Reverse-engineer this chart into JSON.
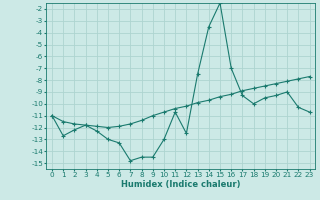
{
  "xlabel": "Humidex (Indice chaleur)",
  "x_values": [
    0,
    1,
    2,
    3,
    4,
    5,
    6,
    7,
    8,
    9,
    10,
    11,
    12,
    13,
    14,
    15,
    16,
    17,
    18,
    19,
    20,
    21,
    22,
    23
  ],
  "curve1_y": [
    -11.0,
    -12.7,
    -12.2,
    -11.8,
    -12.3,
    -13.0,
    -13.3,
    -14.8,
    -14.5,
    -14.5,
    -13.0,
    -10.7,
    -12.5,
    -7.5,
    -3.5,
    -1.5,
    -7.0,
    -9.3,
    -10.0,
    -9.5,
    -9.3,
    -9.0,
    -10.3,
    -10.7
  ],
  "curve2_y": [
    -11.0,
    -11.5,
    -11.7,
    -11.8,
    -11.9,
    -12.0,
    -11.9,
    -11.7,
    -11.4,
    -11.0,
    -10.7,
    -10.4,
    -10.2,
    -9.9,
    -9.7,
    -9.4,
    -9.2,
    -8.9,
    -8.7,
    -8.5,
    -8.3,
    -8.1,
    -7.9,
    -7.7
  ],
  "line_color": "#1a7a6e",
  "bg_color": "#cce9e6",
  "grid_color": "#aed4d0",
  "ylim": [
    -15.5,
    -1.5
  ],
  "xlim": [
    -0.5,
    23.5
  ],
  "yticks": [
    -2,
    -3,
    -4,
    -5,
    -6,
    -7,
    -8,
    -9,
    -10,
    -11,
    -12,
    -13,
    -14,
    -15
  ],
  "xticks": [
    0,
    1,
    2,
    3,
    4,
    5,
    6,
    7,
    8,
    9,
    10,
    11,
    12,
    13,
    14,
    15,
    16,
    17,
    18,
    19,
    20,
    21,
    22,
    23
  ],
  "tick_fontsize": 5.2,
  "xlabel_fontsize": 6.0
}
